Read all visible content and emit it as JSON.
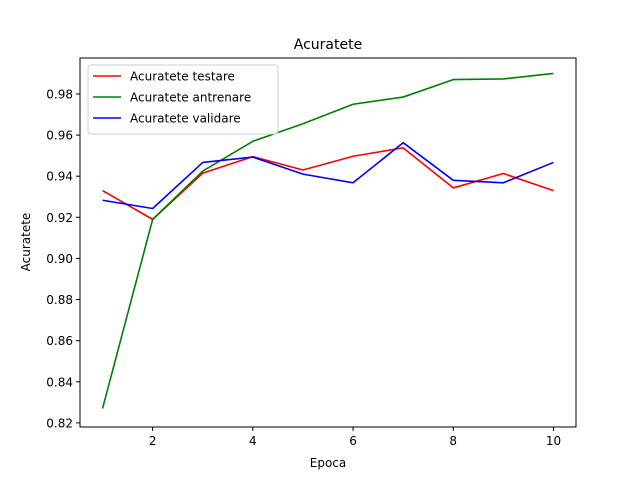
{
  "chart_data": {
    "type": "line",
    "title": "Acuratete",
    "xlabel": "Epoca",
    "ylabel": "Acuratete",
    "x": [
      1,
      2,
      3,
      4,
      5,
      6,
      7,
      8,
      9,
      10
    ],
    "xlim": [
      0.55,
      10.45
    ],
    "ylim": [
      0.818,
      0.9975
    ],
    "xticks": [
      2,
      4,
      6,
      8,
      10
    ],
    "yticks": [
      0.82,
      0.84,
      0.86,
      0.88,
      0.9,
      0.92,
      0.94,
      0.96,
      0.98
    ],
    "ytick_labels": [
      "0.82",
      "0.84",
      "0.86",
      "0.88",
      "0.90",
      "0.92",
      "0.94",
      "0.96",
      "0.98"
    ],
    "grid": false,
    "legend_position": "top-left",
    "series": [
      {
        "name": "Acuratete testare",
        "color": "#ff0000",
        "values": [
          0.933,
          0.919,
          0.9415,
          0.9495,
          0.943,
          0.9497,
          0.9538,
          0.9343,
          0.9413,
          0.933
        ]
      },
      {
        "name": "Acuratete antrenare",
        "color": "#008000",
        "values": [
          0.827,
          0.919,
          0.9425,
          0.957,
          0.9655,
          0.975,
          0.9785,
          0.987,
          0.9873,
          0.99
        ]
      },
      {
        "name": "Acuratete validare",
        "color": "#0000ff",
        "values": [
          0.9283,
          0.9243,
          0.9467,
          0.9493,
          0.941,
          0.9368,
          0.9563,
          0.938,
          0.9368,
          0.9467
        ]
      }
    ]
  }
}
